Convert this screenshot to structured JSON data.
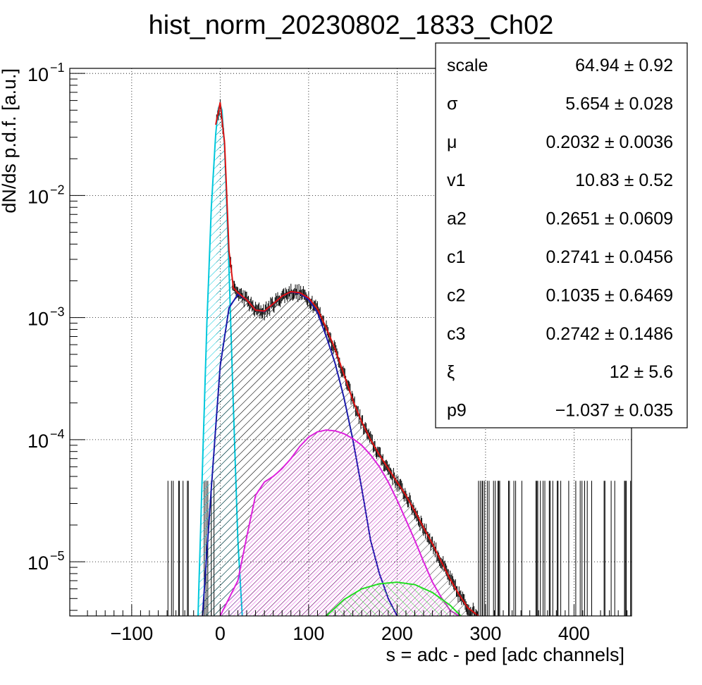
{
  "chart_data": {
    "type": "line",
    "title": "hist_norm_20230802_1833_Ch02",
    "xlabel": "s = adc - ped [adc channels]",
    "ylabel": "dN/ds p.d.f. [a.u.]",
    "xlim": [
      -170,
      465
    ],
    "ylim": [
      3.6e-06,
      0.11
    ],
    "yscale": "log",
    "grid": true,
    "x_ticks": [
      {
        "value": -100,
        "label": "−100"
      },
      {
        "value": 0,
        "label": "0"
      },
      {
        "value": 100,
        "label": "100"
      },
      {
        "value": 200,
        "label": "200"
      },
      {
        "value": 300,
        "label": "300"
      },
      {
        "value": 400,
        "label": "400"
      }
    ],
    "y_ticks": [
      {
        "value": 1e-05,
        "base": "10",
        "exp": "−5"
      },
      {
        "value": 0.0001,
        "base": "10",
        "exp": "−4"
      },
      {
        "value": 0.001,
        "base": "10",
        "exp": "−3"
      },
      {
        "value": 0.01,
        "base": "10",
        "exp": "−2"
      },
      {
        "value": 0.1,
        "base": "10",
        "exp": "−1"
      }
    ],
    "series": [
      {
        "color": "#00c8dc",
        "fill": "hatch-cyan",
        "x": [
          -25,
          -20,
          -15,
          -10,
          -5,
          -2,
          0,
          2,
          5,
          10,
          15,
          20,
          25
        ],
        "y": [
          3.6e-06,
          6e-05,
          0.0009,
          0.008,
          0.032,
          0.052,
          0.056,
          0.05,
          0.025,
          0.0025,
          0.00018,
          1.5e-05,
          3.6e-06
        ]
      },
      {
        "color": "#1a1aaa",
        "fill": "hatch-black",
        "x": [
          -20,
          -10,
          0,
          10,
          20,
          30,
          40,
          50,
          60,
          70,
          80,
          90,
          100,
          110,
          120,
          130,
          140,
          150,
          160,
          170,
          180,
          190,
          200
        ],
        "y": [
          3.6e-06,
          4e-05,
          0.0004,
          0.0012,
          0.00155,
          0.0014,
          0.00115,
          0.00112,
          0.0013,
          0.0015,
          0.00162,
          0.00158,
          0.0014,
          0.0011,
          0.0007,
          0.00042,
          0.00022,
          0.0001,
          4e-05,
          1.5e-05,
          8e-06,
          5e-06,
          3.6e-06
        ]
      },
      {
        "color": "#dd22dd",
        "fill": "hatch-magenta",
        "x": [
          0,
          20,
          30,
          40,
          50,
          60,
          70,
          80,
          90,
          100,
          110,
          120,
          130,
          140,
          150,
          160,
          170,
          180,
          190,
          200,
          210,
          220,
          230,
          240,
          250,
          260,
          270
        ],
        "y": [
          3.6e-06,
          7e-06,
          1.6e-05,
          3.5e-05,
          4.5e-05,
          5e-05,
          5.8e-05,
          7e-05,
          8.8e-05,
          0.000105,
          0.000116,
          0.00012,
          0.000118,
          0.000112,
          0.000102,
          9e-05,
          7.5e-05,
          6e-05,
          4.5e-05,
          3.2e-05,
          2.2e-05,
          1.5e-05,
          1e-05,
          6.8e-06,
          5.1e-06,
          4e-06,
          3.6e-06
        ]
      },
      {
        "color": "#22dd22",
        "fill": "hatch-green",
        "x": [
          120,
          140,
          160,
          180,
          200,
          220,
          240,
          260,
          272
        ],
        "y": [
          3.6e-06,
          4.9e-06,
          6e-06,
          6.6e-06,
          6.8e-06,
          6.5e-06,
          5.6e-06,
          4.4e-06,
          3.6e-06
        ]
      },
      {
        "color": "#dd1111",
        "fill": "none",
        "x": [
          -5,
          0,
          5,
          10,
          15,
          20,
          30,
          40,
          50,
          60,
          70,
          80,
          90,
          100,
          110,
          120,
          130,
          140,
          150,
          160,
          170,
          180,
          190,
          200,
          210,
          220,
          230,
          240,
          250,
          260,
          270,
          280,
          292
        ],
        "y": [
          0.038,
          0.058,
          0.027,
          0.0035,
          0.00175,
          0.0016,
          0.0014,
          0.00115,
          0.00113,
          0.0013,
          0.0015,
          0.00163,
          0.0016,
          0.00145,
          0.00118,
          0.00082,
          0.00055,
          0.00034,
          0.00021,
          0.00014,
          0.0001,
          7.5e-05,
          5.8e-05,
          4.5e-05,
          3.5e-05,
          2.6e-05,
          1.9e-05,
          1.4e-05,
          1e-05,
          7.2e-06,
          5.4e-06,
          4.2e-06,
          3.6e-06
        ]
      }
    ],
    "histogram": {
      "color": "#000000",
      "fill": "hatch-black",
      "x_start": -60,
      "x_end": 465,
      "bin_width": 1
    }
  },
  "stats": [
    {
      "name": "scale",
      "value": "64.94",
      "err": "0.92"
    },
    {
      "name": "σ",
      "value": "5.654",
      "err": "0.028"
    },
    {
      "name": "μ",
      "value": "0.2032",
      "err": "0.0036"
    },
    {
      "name": "v1",
      "value": "10.83",
      "err": "0.52"
    },
    {
      "name": "a2",
      "value": "0.2651",
      "err": "0.0609"
    },
    {
      "name": "c1",
      "value": "0.2741",
      "err": "0.0456"
    },
    {
      "name": "c2",
      "value": "0.1035",
      "err": "0.6469"
    },
    {
      "name": "c3",
      "value": "0.2742",
      "err": "0.1486"
    },
    {
      "name": "ξ",
      "value": "12",
      "err": "5.6"
    },
    {
      "name": "p9",
      "value": "−1.037",
      "err": "0.035"
    }
  ]
}
